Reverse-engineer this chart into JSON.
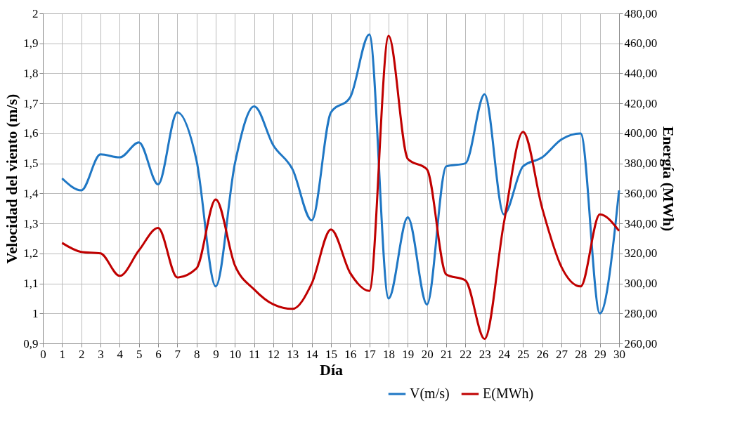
{
  "chart_data": {
    "type": "line",
    "xlabel": "Día",
    "ylabel": "Velocidad del viento (m/s)",
    "y2label": "Energía (MWh)",
    "x": [
      1,
      2,
      3,
      4,
      5,
      6,
      7,
      8,
      9,
      10,
      11,
      12,
      13,
      14,
      15,
      16,
      17,
      18,
      19,
      20,
      21,
      22,
      23,
      24,
      25,
      26,
      27,
      28,
      29,
      30
    ],
    "series": [
      {
        "name": "V(m/s)",
        "color": "#1f77c4",
        "values": [
          1.45,
          1.41,
          1.53,
          1.52,
          1.57,
          1.43,
          1.67,
          1.51,
          1.09,
          1.5,
          1.69,
          1.56,
          1.48,
          1.31,
          1.67,
          1.72,
          1.93,
          1.05,
          1.32,
          1.03,
          1.49,
          1.5,
          1.73,
          1.33,
          1.49,
          1.52,
          1.58,
          1.6,
          1.0,
          1.41
        ]
      },
      {
        "name": "E(MWh)",
        "color": "#c00000",
        "axis": "y2",
        "values": [
          327,
          321,
          320,
          305,
          322,
          337,
          304,
          310,
          356,
          312,
          296,
          286,
          283,
          300,
          336,
          307,
          295,
          465,
          383,
          376,
          306,
          302,
          263,
          340,
          401,
          350,
          311,
          298,
          346,
          335
        ]
      }
    ],
    "xlim": [
      0,
      30
    ],
    "xticks": [
      0,
      1,
      2,
      3,
      4,
      5,
      6,
      7,
      8,
      9,
      10,
      11,
      12,
      13,
      14,
      15,
      16,
      17,
      18,
      19,
      20,
      21,
      22,
      23,
      24,
      25,
      26,
      27,
      28,
      29,
      30
    ],
    "ylim": [
      0.9,
      2
    ],
    "yticks": [
      {
        "value": 0.9,
        "label": "0,9"
      },
      1,
      {
        "value": 1.1,
        "label": "1,1"
      },
      {
        "value": 1.2,
        "label": "1,2"
      },
      {
        "value": 1.3,
        "label": "1,3"
      },
      {
        "value": 1.4,
        "label": "1,4"
      },
      {
        "value": 1.5,
        "label": "1,5"
      },
      {
        "value": 1.6,
        "label": "1,6"
      },
      {
        "value": 1.7,
        "label": "1,7"
      },
      {
        "value": 1.8,
        "label": "1,8"
      },
      {
        "value": 1.9,
        "label": "1,9"
      },
      2
    ],
    "y2lim": [
      260,
      480
    ],
    "y2ticks": [
      {
        "value": 260,
        "label": "260,00"
      },
      {
        "value": 280,
        "label": "280,00"
      },
      {
        "value": 300,
        "label": "300,00"
      },
      {
        "value": 320,
        "label": "320,00"
      },
      {
        "value": 340,
        "label": "340,00"
      },
      {
        "value": 360,
        "label": "360,00"
      },
      {
        "value": 380,
        "label": "380,00"
      },
      {
        "value": 400,
        "label": "400,00"
      },
      {
        "value": 420,
        "label": "420,00"
      },
      {
        "value": 440,
        "label": "440,00"
      },
      {
        "value": 460,
        "label": "460,00"
      },
      {
        "value": 480,
        "label": "480,00"
      }
    ],
    "grid": true,
    "legend": "bottom right",
    "marker": "none",
    "line_style": "solid"
  }
}
